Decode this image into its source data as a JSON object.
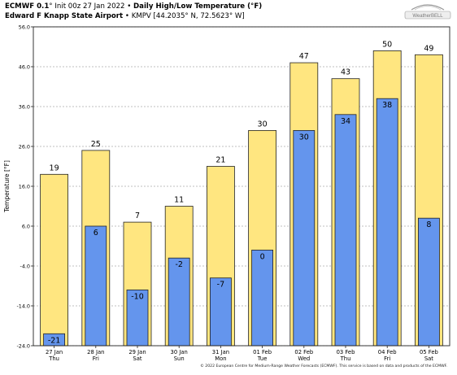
{
  "header": {
    "model": "ECMWF 0.1",
    "deg": "°",
    "init": " Init 00z 27 Jan 2022",
    "bullet": " • ",
    "product": "Daily High/Low Temperature (°F)",
    "station": "Edward F Knapp State Airport",
    "station_info": "KMPV [44.2035° N, 72.5623° W]"
  },
  "logo": {
    "text": "WeatherBELL"
  },
  "footer": {
    "text": "© 2022 European Centre for Medium-Range Weather Forecasts (ECMWF). This service is based on data and products of the ECMWF."
  },
  "colors": {
    "high": "#ffe680",
    "low": "#6495ed",
    "grid": "#aaaaaa",
    "frame": "#222222"
  },
  "chart_data": {
    "type": "bar",
    "ylabel": "Temperature [°F]",
    "ylim": [
      -24.0,
      56.0
    ],
    "yticks": [
      "56.0",
      "46.0",
      "36.0",
      "26.0",
      "16.0",
      "6.0",
      "-4.0",
      "-14.0",
      "-24.0"
    ],
    "ytick_values": [
      56,
      46,
      36,
      26,
      16,
      6,
      -4,
      -14,
      -24
    ],
    "categories": [
      {
        "date": "27 Jan",
        "day": "Thu"
      },
      {
        "date": "28 Jan",
        "day": "Fri"
      },
      {
        "date": "29 Jan",
        "day": "Sat"
      },
      {
        "date": "30 Jan",
        "day": "Sun"
      },
      {
        "date": "31 Jan",
        "day": "Mon"
      },
      {
        "date": "01 Feb",
        "day": "Tue"
      },
      {
        "date": "02 Feb",
        "day": "Wed"
      },
      {
        "date": "03 Feb",
        "day": "Thu"
      },
      {
        "date": "04 Feb",
        "day": "Fri"
      },
      {
        "date": "05 Feb",
        "day": "Sat"
      }
    ],
    "series": [
      {
        "name": "High",
        "values": [
          19,
          25,
          7,
          11,
          21,
          30,
          47,
          43,
          50,
          49
        ]
      },
      {
        "name": "Low",
        "values": [
          -21,
          6,
          -10,
          -2,
          -7,
          0,
          30,
          34,
          38,
          8
        ]
      }
    ],
    "grid": true
  }
}
